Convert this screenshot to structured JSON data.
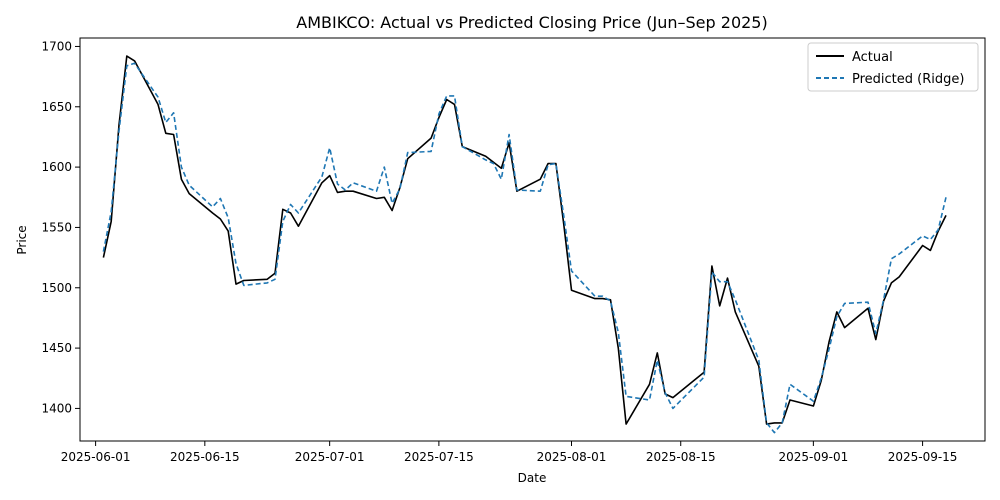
{
  "chart_data": {
    "type": "line",
    "title": "AMBIKCO: Actual vs Predicted Closing Price (Jun–Sep 2025)",
    "xlabel": "Date",
    "ylabel": "Price",
    "xlim": [
      "2025-05-30",
      "2025-09-23"
    ],
    "ylim": [
      1373,
      1707
    ],
    "x_ticks": [
      "2025-06-01",
      "2025-06-15",
      "2025-07-01",
      "2025-07-15",
      "2025-08-01",
      "2025-08-15",
      "2025-09-01",
      "2025-09-15"
    ],
    "y_ticks": [
      1400,
      1450,
      1500,
      1550,
      1600,
      1650,
      1700
    ],
    "grid": false,
    "legend": "top-right",
    "dates": [
      "2025-06-02",
      "2025-06-03",
      "2025-06-04",
      "2025-06-05",
      "2025-06-06",
      "2025-06-09",
      "2025-06-10",
      "2025-06-11",
      "2025-06-12",
      "2025-06-13",
      "2025-06-16",
      "2025-06-17",
      "2025-06-18",
      "2025-06-19",
      "2025-06-20",
      "2025-06-23",
      "2025-06-24",
      "2025-06-25",
      "2025-06-26",
      "2025-06-27",
      "2025-06-30",
      "2025-07-01",
      "2025-07-02",
      "2025-07-03",
      "2025-07-04",
      "2025-07-07",
      "2025-07-08",
      "2025-07-09",
      "2025-07-10",
      "2025-07-11",
      "2025-07-14",
      "2025-07-15",
      "2025-07-16",
      "2025-07-17",
      "2025-07-18",
      "2025-07-21",
      "2025-07-22",
      "2025-07-23",
      "2025-07-24",
      "2025-07-25",
      "2025-07-28",
      "2025-07-29",
      "2025-07-30",
      "2025-07-31",
      "2025-08-01",
      "2025-08-04",
      "2025-08-05",
      "2025-08-06",
      "2025-08-07",
      "2025-08-08",
      "2025-08-11",
      "2025-08-12",
      "2025-08-13",
      "2025-08-14",
      "2025-08-18",
      "2025-08-19",
      "2025-08-20",
      "2025-08-21",
      "2025-08-22",
      "2025-08-25",
      "2025-08-26",
      "2025-08-27",
      "2025-08-28",
      "2025-08-29",
      "2025-09-01",
      "2025-09-02",
      "2025-09-03",
      "2025-09-04",
      "2025-09-05",
      "2025-09-08",
      "2025-09-09",
      "2025-09-10",
      "2025-09-11",
      "2025-09-12",
      "2025-09-15",
      "2025-09-16",
      "2025-09-17",
      "2025-09-18"
    ],
    "series": [
      {
        "name": "Actual",
        "color": "#000000",
        "style": "solid",
        "values": [
          1525,
          1555,
          1635,
          1692,
          1688,
          1652,
          1628,
          1627,
          1590,
          1578,
          1562,
          1557,
          1547,
          1503,
          1506,
          1507,
          1512,
          1565,
          1562,
          1551,
          1587,
          1593,
          1579,
          1580,
          1580,
          1574,
          1575,
          1564,
          1583,
          1607,
          1624,
          1641,
          1656,
          1652,
          1617,
          1609,
          1604,
          1599,
          1620,
          1580,
          1590,
          1603,
          1603,
          1553,
          1498,
          1491,
          1491,
          1490,
          1450,
          1387,
          1420,
          1446,
          1412,
          1409,
          1430,
          1518,
          1485,
          1508,
          1480,
          1435,
          1387,
          1388,
          1388,
          1407,
          1402,
          1423,
          1455,
          1480,
          1467,
          1483,
          1457,
          1489,
          1504,
          1509,
          1535,
          1531,
          1547,
          1560
        ]
      },
      {
        "name": "Predicted (Ridge)",
        "color": "#1f77b4",
        "style": "dashed",
        "values": [
          1530,
          1563,
          1630,
          1684,
          1686,
          1658,
          1637,
          1645,
          1600,
          1585,
          1567,
          1574,
          1558,
          1520,
          1502,
          1504,
          1507,
          1555,
          1569,
          1562,
          1592,
          1616,
          1586,
          1581,
          1587,
          1580,
          1600,
          1570,
          1582,
          1612,
          1613,
          1644,
          1659,
          1659,
          1617,
          1606,
          1603,
          1590,
          1627,
          1581,
          1580,
          1602,
          1603,
          1560,
          1514,
          1493,
          1493,
          1489,
          1463,
          1410,
          1407,
          1440,
          1413,
          1400,
          1426,
          1513,
          1505,
          1505,
          1490,
          1440,
          1388,
          1380,
          1388,
          1420,
          1406,
          1425,
          1449,
          1476,
          1487,
          1488,
          1462,
          1490,
          1524,
          1528,
          1543,
          1540,
          1548,
          1575
        ]
      }
    ]
  }
}
